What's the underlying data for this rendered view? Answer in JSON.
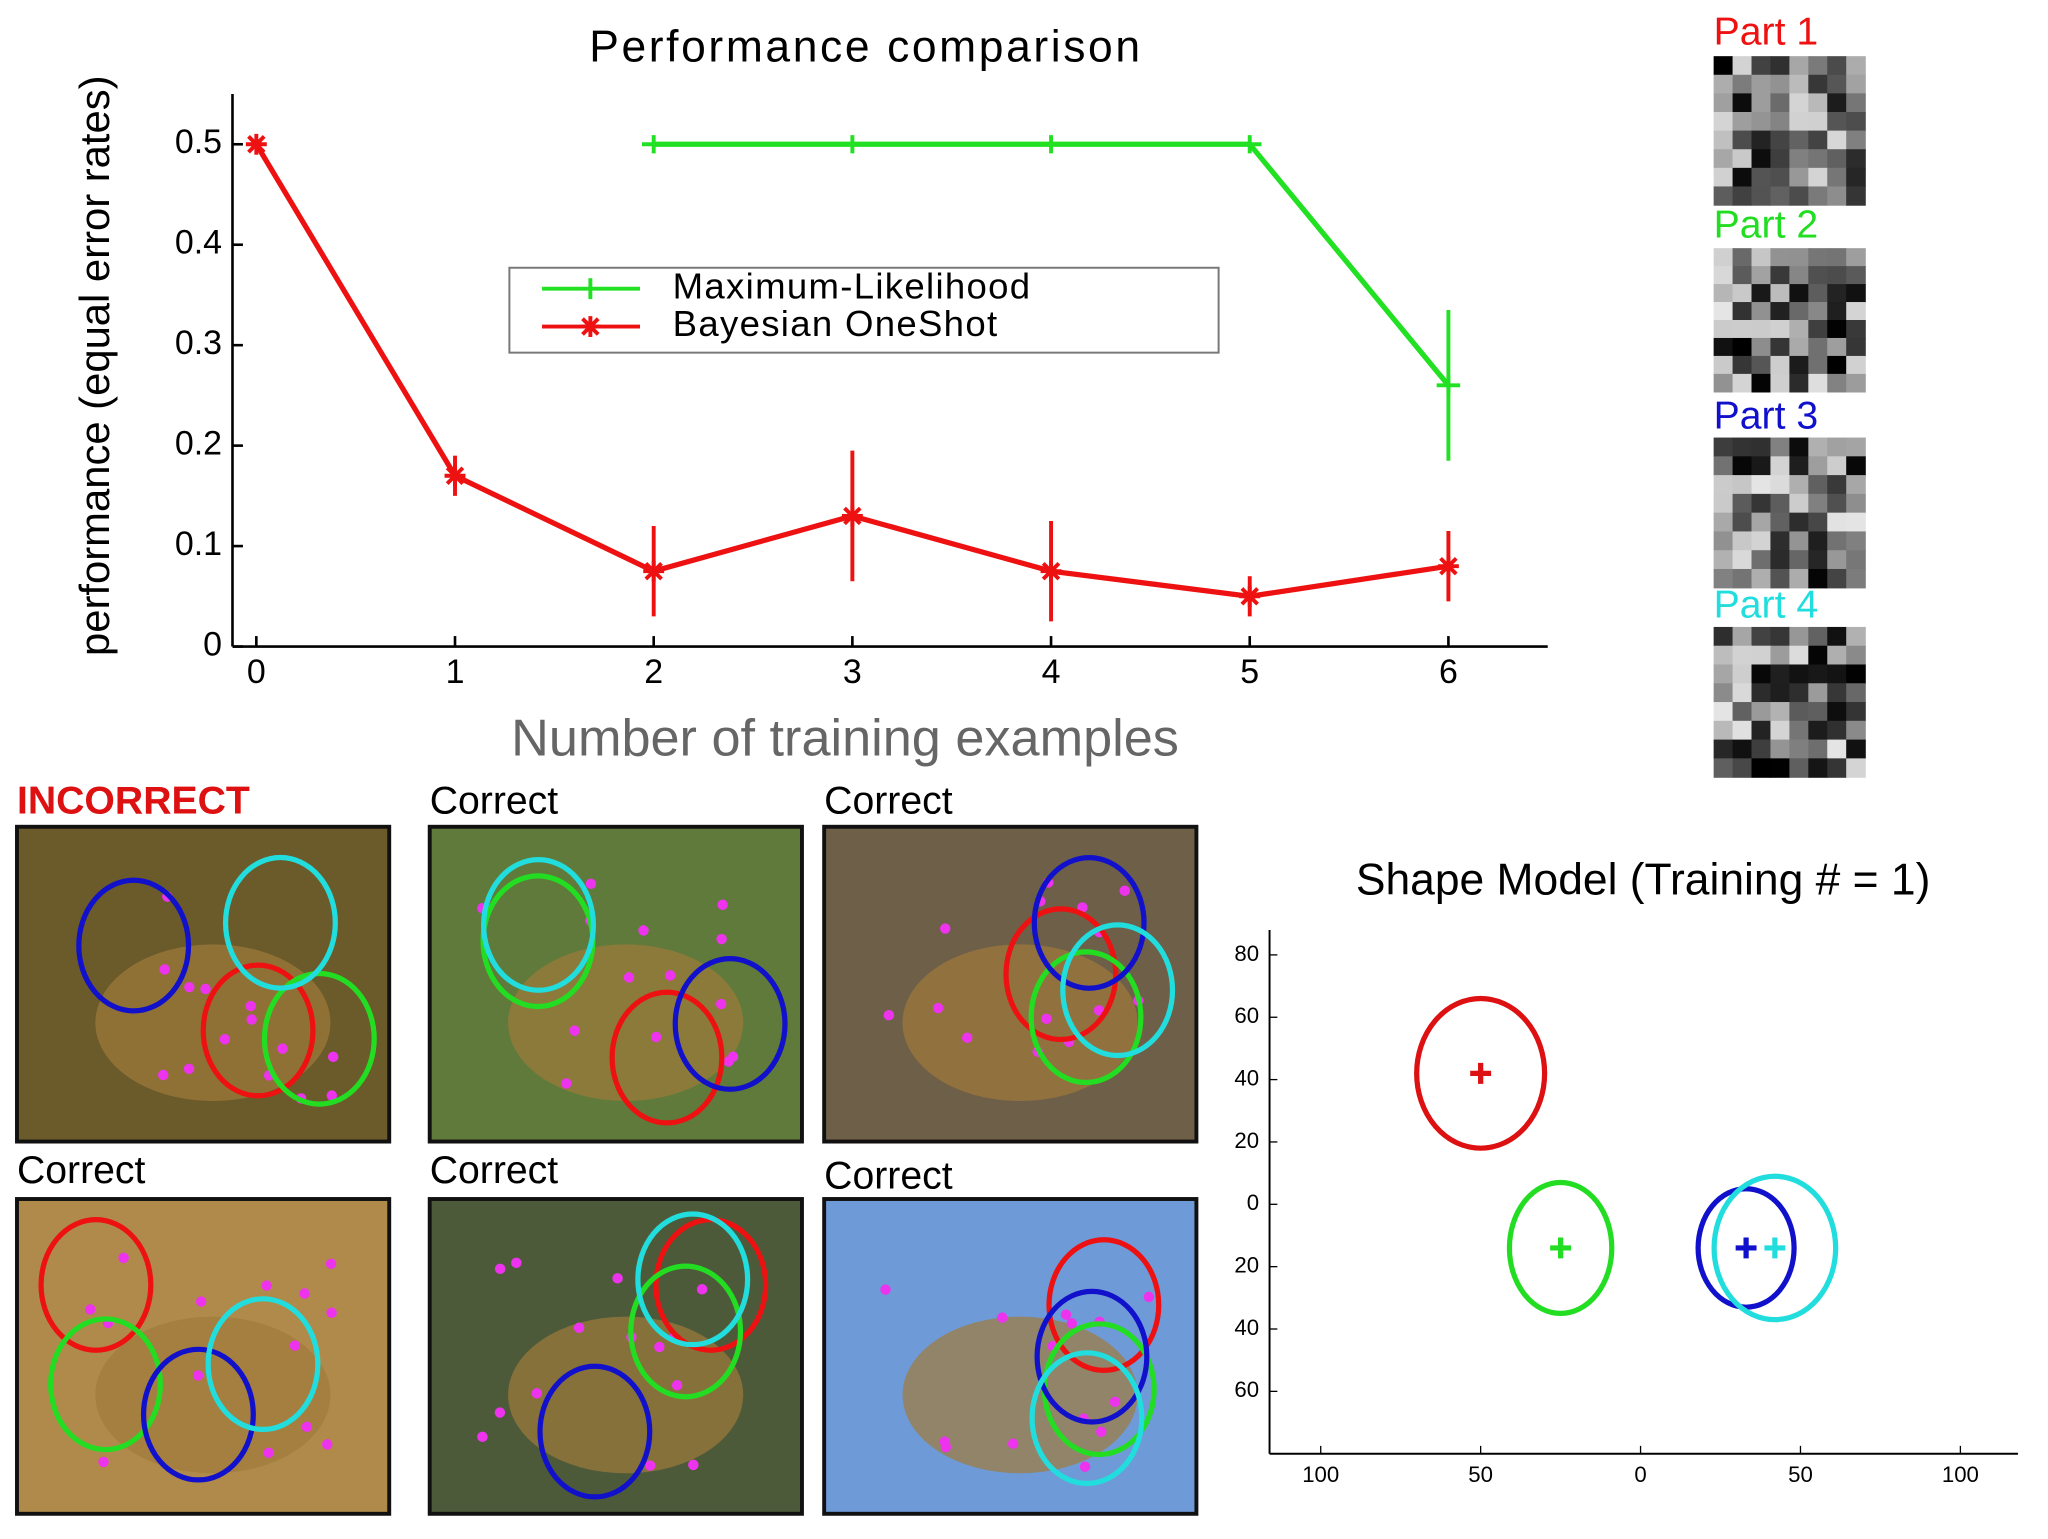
{
  "chart_data": [
    {
      "type": "line",
      "title": "Performance comparison",
      "ylabel": "performance (equal error rates)",
      "xlabel": "Number of training examples",
      "x": [
        0,
        1,
        2,
        3,
        4,
        5,
        6
      ],
      "series": [
        {
          "name": "Maximum-Likelihood",
          "color": "#22e022",
          "marker": "plus",
          "values": [
            null,
            null,
            0.5,
            0.5,
            0.5,
            0.5,
            0.26
          ],
          "errors": [
            null,
            null,
            0,
            0,
            0,
            0,
            0.075
          ]
        },
        {
          "name": "Bayesian OneShot",
          "color": "#ee1111",
          "marker": "star",
          "values": [
            0.5,
            0.17,
            0.075,
            0.13,
            0.075,
            0.05,
            0.08
          ],
          "errors": [
            0,
            0.02,
            0.045,
            0.065,
            0.05,
            0.02,
            0.035
          ]
        }
      ],
      "xlim": [
        -0.12,
        6.5
      ],
      "xticks": [
        0,
        1,
        2,
        3,
        4,
        5,
        6
      ],
      "ylim": [
        0,
        0.55
      ],
      "yticks": [
        0,
        0.1,
        0.2,
        0.3,
        0.4,
        0.5
      ]
    },
    {
      "type": "scatter",
      "title": "Shape Model (Training # = 1)",
      "x": [
        -50,
        -25,
        33,
        42
      ],
      "values": [
        42,
        -14,
        -14,
        -14
      ],
      "rx": [
        20,
        16,
        15,
        19
      ],
      "ry": [
        24,
        21,
        19,
        23
      ],
      "colors": [
        "#dd1111",
        "#22dd22",
        "#1111cc",
        "#22dddd"
      ],
      "xlim": [
        -116,
        118
      ],
      "ylim": [
        -80,
        88
      ],
      "xticks": [
        {
          "value": -100,
          "label": "100"
        },
        {
          "value": -50,
          "label": "50"
        },
        0,
        50,
        100
      ],
      "yticks": [
        80,
        60,
        40,
        20,
        0,
        {
          "value": -20,
          "label": "20"
        },
        {
          "value": -40,
          "label": "40"
        },
        {
          "value": -60,
          "label": "60"
        }
      ]
    }
  ],
  "parts": [
    {
      "label": "Part 1",
      "color": "#ee1111"
    },
    {
      "label": "Part 2",
      "color": "#22dd22"
    },
    {
      "label": "Part 3",
      "color": "#1111cc"
    },
    {
      "label": "Part 4",
      "color": "#22dddd"
    }
  ],
  "panels": [
    "INCORRECT",
    "Correct",
    "Correct",
    "Correct",
    "Correct",
    "Correct"
  ]
}
